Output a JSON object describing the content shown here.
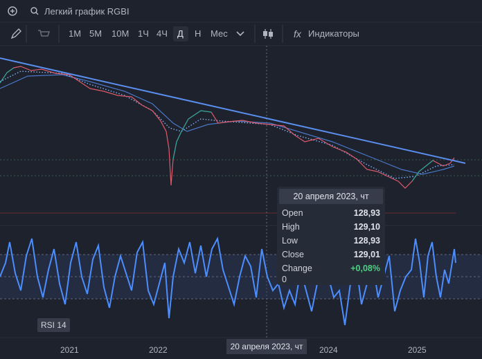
{
  "search": "Легкий график RGBI",
  "toolbar": {
    "intervals": [
      "1M",
      "5M",
      "10M",
      "1Ч",
      "4Ч",
      "Д",
      "Н",
      "Мес"
    ],
    "indicators": "Индикаторы"
  },
  "tooltip": {
    "date": "20 апреля 2023, чт",
    "rows": [
      {
        "label": "Open",
        "value": "128,93"
      },
      {
        "label": "High",
        "value": "129,10"
      },
      {
        "label": "Low",
        "value": "128,93"
      },
      {
        "label": "Close",
        "value": "129,01"
      }
    ],
    "change": {
      "label": "Change",
      "value": "+0,08%"
    },
    "volume": "0"
  },
  "rsi_label": "RSI 14",
  "x_axis": {
    "labels": [
      "2021",
      "2022",
      "2024",
      "2025"
    ],
    "crosshair": "20 апреля 2023, чт"
  }
}
